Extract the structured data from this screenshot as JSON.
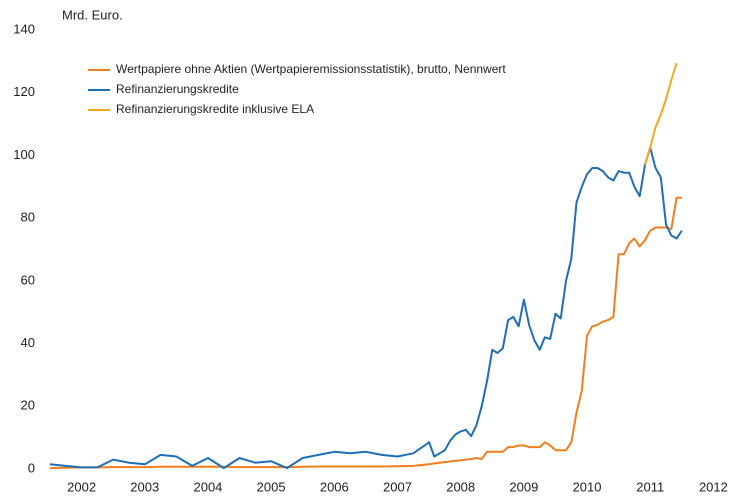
{
  "chart_data": {
    "type": "line",
    "y_label": "Mrd. Euro.",
    "x": [
      2002.0,
      2002.25,
      2002.5,
      2002.75,
      2003.0,
      2003.25,
      2003.5,
      2003.75,
      2004.0,
      2004.25,
      2004.5,
      2004.75,
      2005.0,
      2005.25,
      2005.5,
      2005.75,
      2006.0,
      2006.25,
      2006.5,
      2006.75,
      2007.0,
      2007.25,
      2007.5,
      2007.75,
      2008.0,
      2008.083,
      2008.167,
      2008.25,
      2008.333,
      2008.417,
      2008.5,
      2008.583,
      2008.667,
      2008.75,
      2008.833,
      2008.917,
      2009.0,
      2009.083,
      2009.167,
      2009.25,
      2009.333,
      2009.417,
      2009.5,
      2009.583,
      2009.667,
      2009.75,
      2009.833,
      2009.917,
      2010.0,
      2010.083,
      2010.167,
      2010.25,
      2010.333,
      2010.417,
      2010.5,
      2010.583,
      2010.667,
      2010.75,
      2010.833,
      2010.917,
      2011.0,
      2011.083,
      2011.167,
      2011.25,
      2011.333,
      2011.417,
      2011.5,
      2011.583,
      2011.667,
      2011.75,
      2011.833,
      2011.917,
      2012.0
    ],
    "series": [
      {
        "name": "Wertpapiere ohne Aktien (Wertpapieremissionsstatistik), brutto, Nennwert",
        "color": "#f07f1f",
        "values": [
          0.3,
          0.4,
          0.5,
          0.5,
          0.6,
          0.6,
          0.6,
          0.7,
          0.7,
          0.7,
          0.7,
          0.7,
          0.6,
          0.6,
          0.6,
          0.6,
          0.7,
          0.8,
          0.8,
          0.8,
          0.8,
          0.8,
          0.9,
          1.0,
          1.5,
          1.8,
          2,
          2.2,
          2.4,
          2.6,
          2.8,
          3,
          3.2,
          3.5,
          3.2,
          5.5,
          5.5,
          5.5,
          5.5,
          7,
          7,
          7.5,
          7.5,
          7,
          7,
          7,
          8.5,
          7.5,
          6,
          6,
          6,
          8.5,
          18,
          25,
          42.5,
          45.5,
          46,
          47,
          47.5,
          48.5,
          68.5,
          68.5,
          72,
          73.5,
          71,
          73,
          76,
          77,
          77,
          77,
          76.5,
          86.5,
          86.5
        ]
      },
      {
        "name": "Refinanzierungskredite",
        "color": "#1f6fb5",
        "values": [
          1.5,
          1,
          0.5,
          0.5,
          3,
          2,
          1.5,
          4.5,
          4,
          1,
          3.5,
          0.3,
          3.5,
          2,
          2.5,
          0.3,
          3.5,
          4.5,
          5.5,
          5,
          5.5,
          4.5,
          4,
          5,
          8.5,
          4,
          5,
          6,
          9,
          11,
          12,
          12.5,
          10.5,
          14,
          20,
          28,
          38,
          37,
          38.5,
          47.5,
          48.5,
          45.5,
          54,
          46,
          41,
          38,
          42,
          41.5,
          49.5,
          48,
          60,
          67,
          85,
          90,
          94,
          96,
          96,
          95,
          93,
          92,
          95,
          94.5,
          94.5,
          90,
          87,
          97,
          102.5,
          96,
          93,
          78,
          74.5,
          73.5,
          76
        ]
      },
      {
        "name": "Refinanzierungskredite inklusive ELA",
        "color": "#f4a91d",
        "values": [
          null,
          null,
          null,
          null,
          null,
          null,
          null,
          null,
          null,
          null,
          null,
          null,
          null,
          null,
          null,
          null,
          null,
          null,
          null,
          null,
          null,
          null,
          null,
          null,
          null,
          null,
          null,
          null,
          null,
          null,
          null,
          null,
          null,
          null,
          null,
          null,
          null,
          null,
          null,
          null,
          null,
          null,
          null,
          null,
          null,
          null,
          null,
          null,
          null,
          null,
          null,
          null,
          null,
          null,
          null,
          null,
          null,
          null,
          null,
          null,
          null,
          null,
          null,
          null,
          null,
          97,
          102.5,
          109,
          113,
          118,
          124,
          129.5,
          null
        ]
      }
    ],
    "xlim": [
      2002,
      2013
    ],
    "xticks": [
      {
        "value": 2002.5,
        "label": "2002"
      },
      {
        "value": 2003.5,
        "label": "2003"
      },
      {
        "value": 2004.5,
        "label": "2004"
      },
      {
        "value": 2005.5,
        "label": "2005"
      },
      {
        "value": 2006.5,
        "label": "2006"
      },
      {
        "value": 2007.5,
        "label": "2007"
      },
      {
        "value": 2008.5,
        "label": "2008"
      },
      {
        "value": 2009.5,
        "label": "2009"
      },
      {
        "value": 2010.5,
        "label": "2010"
      },
      {
        "value": 2011.5,
        "label": "2011"
      },
      {
        "value": 2012.5,
        "label": "2012"
      }
    ],
    "ylim": [
      0,
      140
    ],
    "yticks": [
      0,
      20,
      40,
      60,
      80,
      100,
      120,
      140
    ],
    "grid": false,
    "legend": "upper left"
  }
}
